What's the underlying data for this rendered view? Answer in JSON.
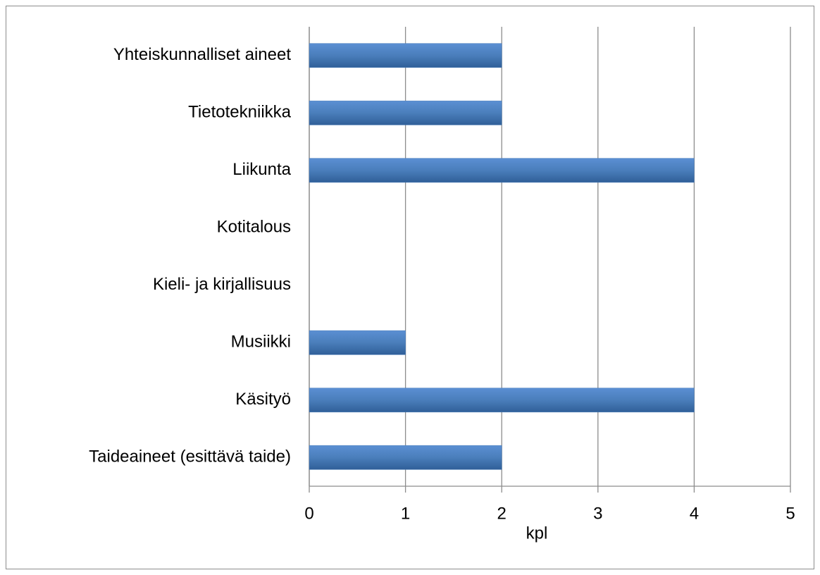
{
  "chart_data": {
    "type": "hbar",
    "categories": [
      "Yhteiskunnalliset aineet",
      "Tietotekniikka",
      "Liikunta",
      "Kotitalous",
      "Kieli- ja kirjallisuus",
      "Musiikki",
      "Käsityö",
      "Taideaineet (esittävä taide)"
    ],
    "values": [
      2,
      2,
      4,
      0,
      0,
      1,
      4,
      2
    ],
    "color": "#4a7ebb",
    "x_label": "kpl",
    "xlim": [
      0,
      5
    ],
    "xticks": [
      0,
      1,
      2,
      3,
      4,
      5
    ],
    "grid": true
  }
}
